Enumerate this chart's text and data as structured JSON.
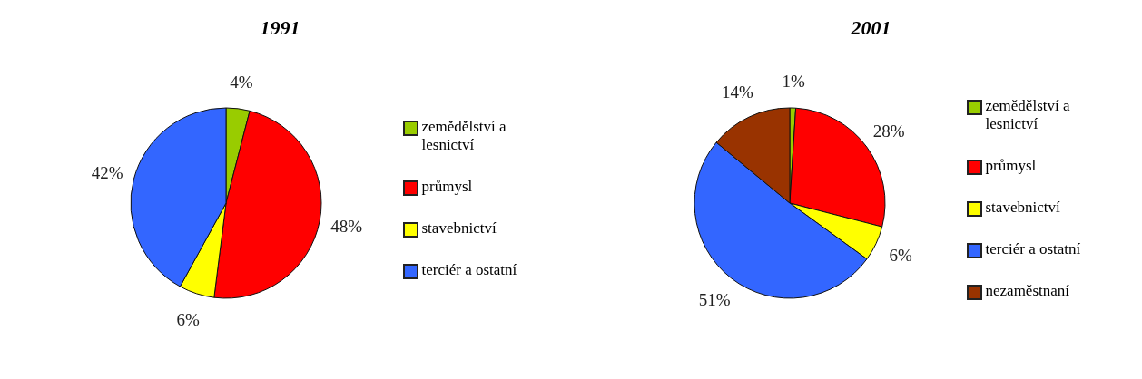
{
  "chart_data": [
    {
      "type": "pie",
      "title": "1991",
      "categories": [
        "zemědělství a lesnictví",
        "průmysl",
        "stavebnictví",
        "terciér a ostatní"
      ],
      "values": [
        4,
        48,
        6,
        42
      ],
      "value_labels": [
        "4%",
        "48%",
        "6%",
        "42%"
      ],
      "colors": [
        "#99cc00",
        "#ff0000",
        "#ffff00",
        "#3366ff"
      ],
      "legend": "right"
    },
    {
      "type": "pie",
      "title": "2001",
      "categories": [
        "zemědělství a lesnictví",
        "průmysl",
        "stavebnictví",
        "terciér a ostatní",
        "nezaměstnaní"
      ],
      "values": [
        1,
        28,
        6,
        51,
        14
      ],
      "value_labels": [
        "1%",
        "28%",
        "6%",
        "51%",
        "14%"
      ],
      "colors": [
        "#99cc00",
        "#ff0000",
        "#ffff00",
        "#3366ff",
        "#993300"
      ],
      "legend": "right"
    }
  ]
}
